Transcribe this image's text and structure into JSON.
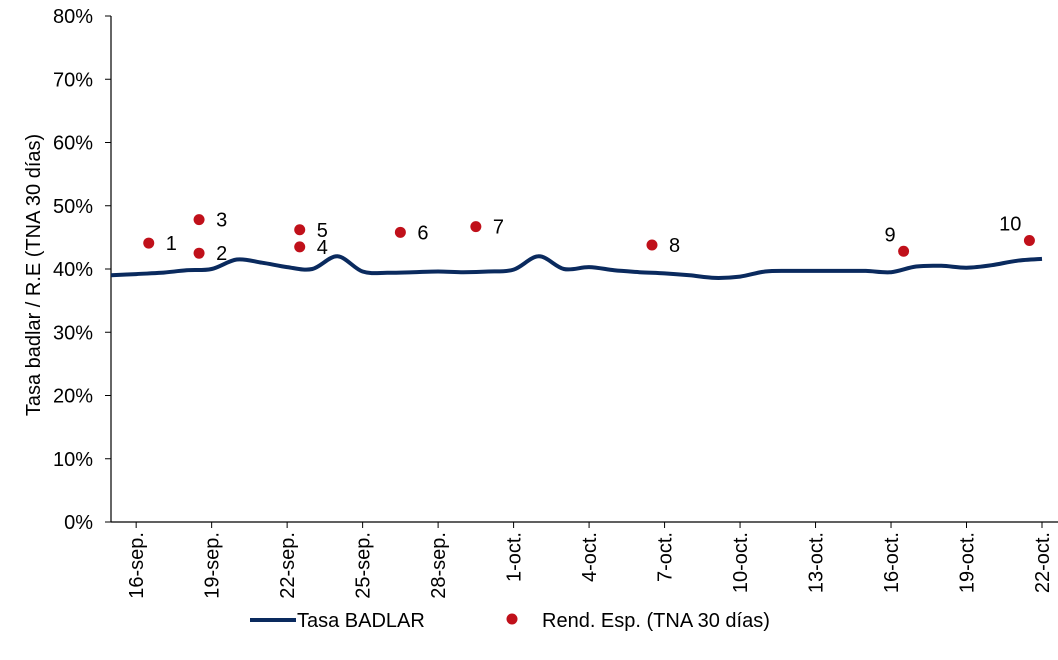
{
  "chart_data": {
    "type": "line",
    "ylabel": "Tasa badlar / R.E (TNA 30 días)",
    "ylim": [
      0,
      80
    ],
    "yticks": [
      0,
      10,
      20,
      30,
      40,
      50,
      60,
      70,
      80
    ],
    "ytick_labels": [
      "0%",
      "10%",
      "20%",
      "30%",
      "40%",
      "50%",
      "60%",
      "70%",
      "80%"
    ],
    "xlim": [
      0,
      37
    ],
    "xtick_positions": [
      1,
      4,
      7,
      10,
      13,
      16,
      19,
      22,
      25,
      28,
      31,
      34,
      37
    ],
    "xtick_labels": [
      "16-sep.",
      "19-sep.",
      "22-sep.",
      "25-sep.",
      "28-sep.",
      "1-oct.",
      "4-oct.",
      "7-oct.",
      "10-oct.",
      "13-oct.",
      "16-oct.",
      "19-oct.",
      "22-oct."
    ],
    "grid": false,
    "legend_position": "bottom",
    "series": [
      {
        "name": "Tasa BADLAR",
        "kind": "line",
        "color": "#0a2a5e",
        "x": [
          0,
          1,
          2,
          3,
          4,
          5,
          6,
          7,
          8,
          9,
          10,
          11,
          12,
          13,
          14,
          15,
          16,
          17,
          18,
          19,
          20,
          21,
          22,
          23,
          24,
          25,
          26,
          27,
          28,
          29,
          30,
          31,
          32,
          33,
          34,
          35,
          36,
          37
        ],
        "y": [
          39.0,
          39.2,
          39.4,
          39.8,
          40.0,
          41.5,
          41.0,
          40.3,
          40.0,
          42.0,
          39.6,
          39.4,
          39.5,
          39.6,
          39.5,
          39.6,
          39.9,
          42.0,
          40.0,
          40.3,
          39.8,
          39.5,
          39.3,
          39.0,
          38.6,
          38.8,
          39.6,
          39.7,
          39.7,
          39.7,
          39.7,
          39.5,
          40.4,
          40.5,
          40.2,
          40.6,
          41.3,
          41.6
        ]
      },
      {
        "name": "Rend. Esp. (TNA 30 días)",
        "kind": "scatter",
        "color": "#c0101a",
        "points": [
          {
            "x": 1.5,
            "y": 44.1,
            "label": "1"
          },
          {
            "x": 3.5,
            "y": 42.5,
            "label": "2"
          },
          {
            "x": 3.5,
            "y": 47.8,
            "label": "3"
          },
          {
            "x": 7.5,
            "y": 43.5,
            "label": "4"
          },
          {
            "x": 7.5,
            "y": 46.2,
            "label": "5"
          },
          {
            "x": 11.5,
            "y": 45.8,
            "label": "6"
          },
          {
            "x": 14.5,
            "y": 46.7,
            "label": "7"
          },
          {
            "x": 21.5,
            "y": 43.8,
            "label": "8"
          },
          {
            "x": 31.5,
            "y": 42.8,
            "label": "9"
          },
          {
            "x": 36.5,
            "y": 44.5,
            "label": "10"
          }
        ]
      }
    ]
  }
}
